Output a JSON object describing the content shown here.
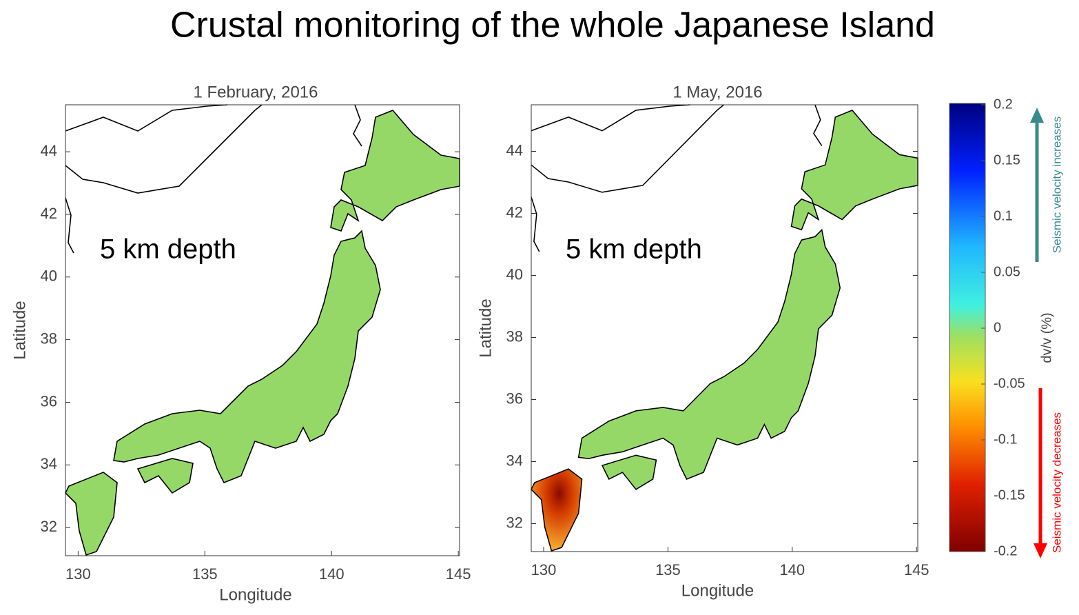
{
  "title": "Crustal monitoring of the whole Japanese Island",
  "panels": [
    {
      "title": "1 February, 2016",
      "annotation": "5 km depth",
      "xlabel": "Longitude",
      "ylabel": "Latitude",
      "xlim": [
        129.5,
        145.05
      ],
      "ylim": [
        31.1,
        45.5
      ],
      "xticks": [
        130,
        135,
        140,
        145
      ],
      "yticks": [
        32,
        34,
        36,
        38,
        40,
        42,
        44
      ]
    },
    {
      "title": "1 May, 2016",
      "annotation": "5 km depth",
      "xlabel": "Longitude",
      "ylabel": "Latitude",
      "xlim": [
        129.5,
        145.05
      ],
      "ylim": [
        31.1,
        45.5
      ],
      "xticks": [
        130,
        135,
        140,
        145
      ],
      "yticks": [
        32,
        34,
        36,
        38,
        40,
        42,
        44
      ]
    }
  ],
  "colorbar": {
    "label": "dv/v (%)",
    "lim": [
      -0.2,
      0.2
    ],
    "ticks": [
      0.2,
      0.15,
      0.1,
      0.05,
      0,
      -0.05,
      -0.1,
      -0.15,
      -0.2
    ],
    "increase_label": "Seismic velocity increases",
    "decrease_label": "Seismic velocity decreases"
  }
}
